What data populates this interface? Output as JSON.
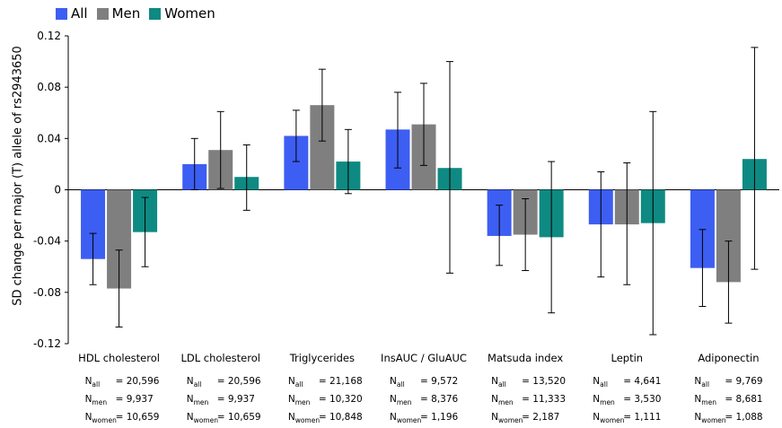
{
  "chart_data": {
    "type": "bar",
    "title": "",
    "xlabel": "",
    "ylabel": "SD change per major (T) allele of rs2943650",
    "ylim": [
      -0.12,
      0.12
    ],
    "yticks": [
      "0.12",
      "0.08",
      "0.04",
      "0",
      "-0.04",
      "-0.08",
      "-0.12"
    ],
    "legend_position": "top-left",
    "grid": false,
    "colors": {
      "All": "#3d5ef2",
      "Men": "#7f7f7f",
      "Women": "#0e8a82"
    },
    "categories": [
      "HDL cholesterol",
      "LDL cholesterol",
      "Triglycerides",
      "InsAUC / GluAUC",
      "Matsuda index",
      "Leptin",
      "Adiponectin"
    ],
    "series": [
      {
        "name": "All",
        "values": [
          -0.054,
          0.02,
          0.042,
          0.047,
          -0.036,
          -0.027,
          -0.061
        ],
        "err_low": [
          -0.074,
          0.0,
          0.022,
          0.017,
          -0.059,
          -0.068,
          -0.091
        ],
        "err_high": [
          -0.034,
          0.04,
          0.062,
          0.076,
          -0.012,
          0.014,
          -0.031
        ]
      },
      {
        "name": "Men",
        "values": [
          -0.077,
          0.031,
          0.066,
          0.051,
          -0.035,
          -0.027,
          -0.072
        ],
        "err_low": [
          -0.107,
          0.001,
          0.038,
          0.019,
          -0.063,
          -0.074,
          -0.104
        ],
        "err_high": [
          -0.047,
          0.061,
          0.094,
          0.083,
          -0.007,
          0.021,
          -0.04
        ]
      },
      {
        "name": "Women",
        "values": [
          -0.033,
          0.01,
          0.022,
          0.017,
          -0.037,
          -0.026,
          0.024
        ],
        "err_low": [
          -0.06,
          -0.016,
          -0.003,
          -0.065,
          -0.096,
          -0.113,
          -0.062
        ],
        "err_high": [
          -0.006,
          0.035,
          0.047,
          0.1,
          0.022,
          0.061,
          0.111
        ]
      }
    ],
    "n_labels": {
      "all": "all",
      "men": "men",
      "women": "women"
    },
    "sample_sizes": [
      {
        "all": "= 20,596",
        "men": "= 9,937",
        "women": "= 10,659"
      },
      {
        "all": "= 20,596",
        "men": "= 9,937",
        "women": "= 10,659"
      },
      {
        "all": "= 21,168",
        "men": "= 10,320",
        "women": "= 10,848"
      },
      {
        "all": "= 9,572",
        "men": "= 8,376",
        "women": "= 1,196"
      },
      {
        "all": "= 13,520",
        "men": "= 11,333",
        "women": "= 2,187"
      },
      {
        "all": "= 4,641",
        "men": "= 3,530",
        "women": "= 1,111"
      },
      {
        "all": "= 9,769",
        "men": "= 8,681",
        "women": "= 1,088"
      }
    ]
  }
}
